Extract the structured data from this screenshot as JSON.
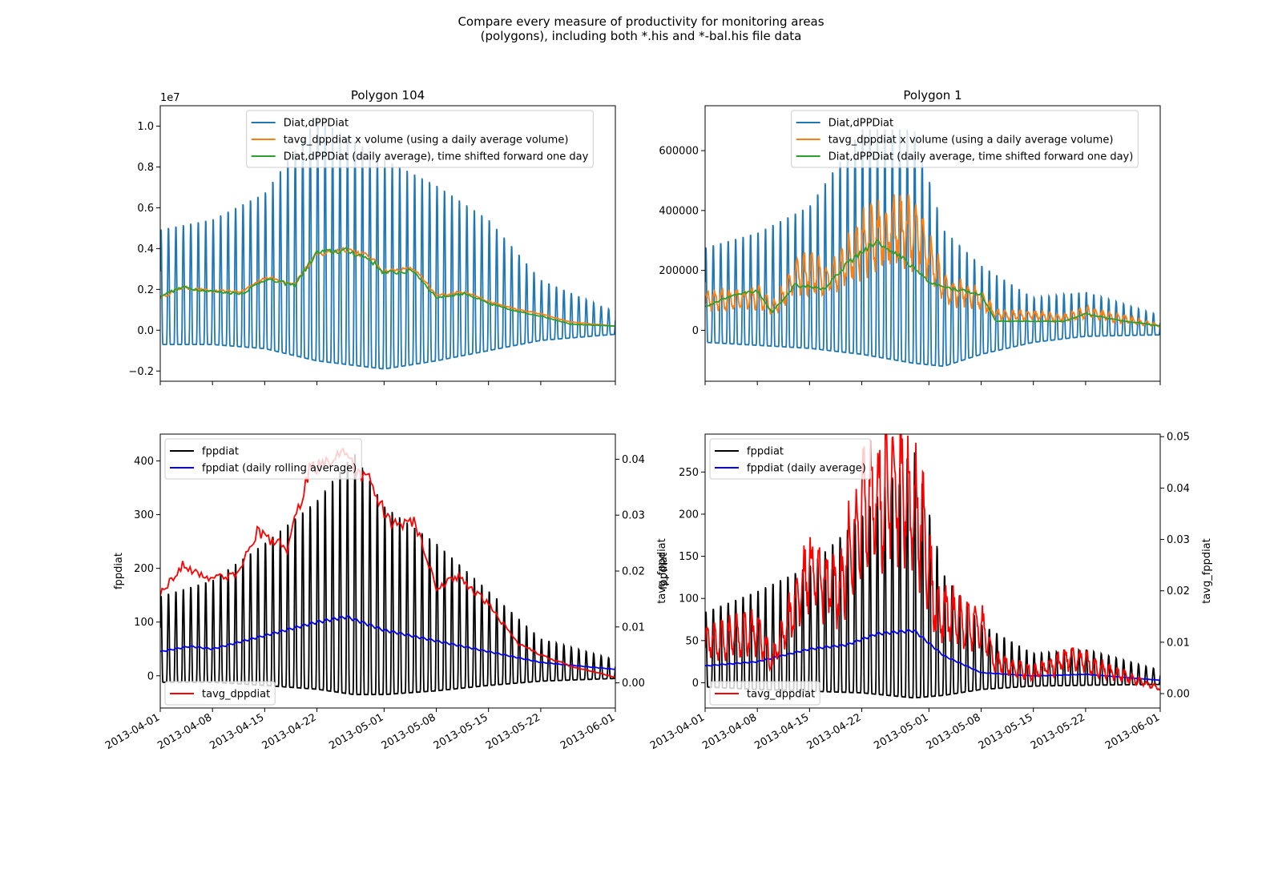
{
  "figure": {
    "title_line1": "Compare every measure of productivity for monitoring areas",
    "title_line2": "(polygons), including both *.his and *-bal.his file data"
  },
  "colors": {
    "c0": "#1f77b4",
    "c1": "#ff7f0e",
    "c2": "#2ca02c",
    "black": "#000000",
    "blue": "#0000ff",
    "red": "#ff0000"
  },
  "chart_data": [
    {
      "id": "top-left",
      "type": "line",
      "title": "Polygon 104",
      "xlim": [
        "2013-04-01",
        "2013-06-01"
      ],
      "ylim": [
        -0.25,
        1.1
      ],
      "y_offset_label": "1e7",
      "yticks": [
        -0.2,
        0.0,
        0.2,
        0.4,
        0.6,
        0.8,
        1.0
      ],
      "ytick_labels": [
        "−0.2",
        "0.0",
        "0.2",
        "0.4",
        "0.6",
        "0.8",
        "1.0"
      ],
      "legend": {
        "loc": "upper center"
      },
      "series": [
        {
          "name": "Diat,dPPDiat",
          "color": "#1f77b4",
          "kind": "diurnal",
          "envelope_x": [
            "2013-04-01",
            "2013-04-08",
            "2013-04-15",
            "2013-04-22",
            "2013-05-01",
            "2013-05-08",
            "2013-05-15",
            "2013-05-22",
            "2013-06-01"
          ],
          "peak": [
            0.5,
            0.55,
            0.68,
            1.05,
            0.85,
            0.72,
            0.55,
            0.25,
            0.09
          ],
          "trough": [
            -0.07,
            -0.07,
            -0.09,
            -0.15,
            -0.19,
            -0.15,
            -0.1,
            -0.05,
            -0.02
          ]
        },
        {
          "name": "tavg_dppdiat x volume (using a daily average volume)",
          "color": "#ff7f0e",
          "kind": "stepped",
          "x": [
            "2013-04-01",
            "2013-04-04",
            "2013-04-08",
            "2013-04-12",
            "2013-04-15",
            "2013-04-19",
            "2013-04-22",
            "2013-04-26",
            "2013-04-29",
            "2013-05-01",
            "2013-05-05",
            "2013-05-08",
            "2013-05-12",
            "2013-05-15",
            "2013-05-19",
            "2013-05-22",
            "2013-05-26",
            "2013-06-01"
          ],
          "y": [
            0.16,
            0.21,
            0.19,
            0.19,
            0.26,
            0.23,
            0.37,
            0.4,
            0.36,
            0.29,
            0.3,
            0.17,
            0.19,
            0.14,
            0.1,
            0.08,
            0.04,
            0.02
          ]
        },
        {
          "name": "Diat,dPPDiat (daily average), time shifted forward one day",
          "color": "#2ca02c",
          "kind": "stepped",
          "x": [
            "2013-04-01",
            "2013-04-04",
            "2013-04-08",
            "2013-04-12",
            "2013-04-15",
            "2013-04-19",
            "2013-04-22",
            "2013-04-26",
            "2013-04-29",
            "2013-05-01",
            "2013-05-05",
            "2013-05-08",
            "2013-05-12",
            "2013-05-15",
            "2013-05-19",
            "2013-05-22",
            "2013-05-26",
            "2013-06-01"
          ],
          "y": [
            0.17,
            0.21,
            0.19,
            0.18,
            0.25,
            0.22,
            0.38,
            0.39,
            0.35,
            0.28,
            0.29,
            0.16,
            0.18,
            0.13,
            0.09,
            0.07,
            0.03,
            0.02
          ]
        }
      ]
    },
    {
      "id": "top-right",
      "type": "line",
      "title": "Polygon 1",
      "xlim": [
        "2013-04-01",
        "2013-06-01"
      ],
      "ylim": [
        -170000,
        750000
      ],
      "yticks": [
        0,
        200000,
        400000,
        600000
      ],
      "ytick_labels": [
        "0",
        "200000",
        "400000",
        "600000"
      ],
      "legend": {
        "loc": "upper center"
      },
      "series": [
        {
          "name": "Diat,dPPDiat",
          "color": "#1f77b4",
          "kind": "diurnal",
          "envelope_x": [
            "2013-04-01",
            "2013-04-08",
            "2013-04-15",
            "2013-04-22",
            "2013-04-29",
            "2013-05-03",
            "2013-05-08",
            "2013-05-15",
            "2013-05-22",
            "2013-06-01"
          ],
          "peak": [
            280000,
            330000,
            420000,
            680000,
            680000,
            340000,
            220000,
            110000,
            130000,
            50000
          ],
          "trough": [
            -40000,
            -50000,
            -60000,
            -80000,
            -110000,
            -120000,
            -80000,
            -40000,
            -20000,
            -15000
          ]
        },
        {
          "name": "tavg_dppdiat x volume (using a daily average volume)",
          "color": "#ff7f0e",
          "kind": "noisy",
          "x": [
            "2013-04-01",
            "2013-04-08",
            "2013-04-10",
            "2013-04-14",
            "2013-04-18",
            "2013-04-22",
            "2013-04-27",
            "2013-04-30",
            "2013-05-03",
            "2013-05-08",
            "2013-05-10",
            "2013-05-15",
            "2013-05-19",
            "2013-05-22",
            "2013-06-01"
          ],
          "y": [
            100000,
            110000,
            70000,
            200000,
            170000,
            290000,
            340000,
            300000,
            140000,
            110000,
            50000,
            50000,
            40000,
            60000,
            15000
          ]
        },
        {
          "name": "Diat,dPPDiat (daily average, time shifted forward one day)",
          "color": "#2ca02c",
          "kind": "stepped",
          "x": [
            "2013-04-01",
            "2013-04-05",
            "2013-04-08",
            "2013-04-10",
            "2013-04-13",
            "2013-04-17",
            "2013-04-20",
            "2013-04-24",
            "2013-04-28",
            "2013-05-01",
            "2013-05-04",
            "2013-05-08",
            "2013-05-10",
            "2013-05-15",
            "2013-05-19",
            "2013-05-22",
            "2013-05-26",
            "2013-06-01"
          ],
          "y": [
            80000,
            120000,
            130000,
            60000,
            150000,
            140000,
            220000,
            300000,
            230000,
            160000,
            140000,
            120000,
            30000,
            30000,
            30000,
            55000,
            35000,
            15000
          ]
        }
      ]
    },
    {
      "id": "bottom-left",
      "type": "line",
      "xlim": [
        "2013-04-01",
        "2013-06-01"
      ],
      "ylim": [
        -60,
        450
      ],
      "ylabel": "fppdiat",
      "yticks": [
        0,
        100,
        200,
        300,
        400
      ],
      "ytick_labels": [
        "0",
        "100",
        "200",
        "300",
        "400"
      ],
      "y2lim": [
        -0.0045,
        0.0445
      ],
      "y2label": "tavg_fppdiat",
      "y2ticks": [
        0.0,
        0.01,
        0.02,
        0.03,
        0.04
      ],
      "y2tick_labels": [
        "0.00",
        "0.01",
        "0.02",
        "0.03",
        "0.04"
      ],
      "xtick_labels": [
        "2013-04-01",
        "2013-04-08",
        "2013-04-15",
        "2013-04-22",
        "2013-05-01",
        "2013-05-08",
        "2013-05-15",
        "2013-05-22",
        "2013-06-01"
      ],
      "legend": {
        "loc": "upper left"
      },
      "legend2": {
        "loc": "lower left"
      },
      "series": [
        {
          "name": "fppdiat",
          "color": "#000000",
          "kind": "diurnal",
          "axis": "left",
          "envelope_x": [
            "2013-04-01",
            "2013-04-08",
            "2013-04-15",
            "2013-04-22",
            "2013-04-27",
            "2013-05-01",
            "2013-05-08",
            "2013-05-15",
            "2013-05-22",
            "2013-06-01"
          ],
          "peak": [
            150,
            180,
            250,
            330,
            420,
            320,
            250,
            160,
            70,
            30
          ],
          "trough": [
            -12,
            -12,
            -18,
            -25,
            -35,
            -35,
            -28,
            -18,
            -10,
            -5
          ]
        },
        {
          "name": "fppdiat (daily rolling average)",
          "color": "#0000ff",
          "kind": "smooth",
          "axis": "left",
          "x": [
            "2013-04-01",
            "2013-04-05",
            "2013-04-08",
            "2013-04-15",
            "2013-04-22",
            "2013-04-26",
            "2013-05-01",
            "2013-05-08",
            "2013-05-15",
            "2013-05-22",
            "2013-06-01"
          ],
          "y": [
            45,
            55,
            50,
            75,
            100,
            110,
            85,
            65,
            45,
            25,
            12
          ]
        },
        {
          "name": "tavg_dppdiat",
          "color": "#ff0000",
          "kind": "stepped",
          "axis": "right",
          "x": [
            "2013-04-01",
            "2013-04-04",
            "2013-04-07",
            "2013-04-11",
            "2013-04-14",
            "2013-04-18",
            "2013-04-21",
            "2013-04-25",
            "2013-04-29",
            "2013-05-02",
            "2013-05-05",
            "2013-05-08",
            "2013-05-11",
            "2013-05-15",
            "2013-05-19",
            "2013-05-22",
            "2013-05-26",
            "2013-06-01"
          ],
          "y": [
            0.016,
            0.021,
            0.019,
            0.019,
            0.027,
            0.024,
            0.038,
            0.041,
            0.036,
            0.028,
            0.029,
            0.017,
            0.019,
            0.014,
            0.007,
            0.005,
            0.003,
            0.001
          ]
        }
      ]
    },
    {
      "id": "bottom-right",
      "type": "line",
      "xlim": [
        "2013-04-01",
        "2013-06-01"
      ],
      "ylim": [
        -30,
        295
      ],
      "ylabel": "fppdiat",
      "yticks": [
        0,
        50,
        100,
        150,
        200,
        250
      ],
      "ytick_labels": [
        "0",
        "50",
        "100",
        "150",
        "200",
        "250"
      ],
      "y2lim": [
        -0.0028,
        0.0505
      ],
      "y2label": "tavg_fppdiat",
      "y2ticks": [
        0.0,
        0.01,
        0.02,
        0.03,
        0.04,
        0.05
      ],
      "y2tick_labels": [
        "0.00",
        "0.01",
        "0.02",
        "0.03",
        "0.04",
        "0.05"
      ],
      "xtick_labels": [
        "2013-04-01",
        "2013-04-08",
        "2013-04-15",
        "2013-04-22",
        "2013-05-01",
        "2013-05-08",
        "2013-05-15",
        "2013-05-22",
        "2013-06-01"
      ],
      "legend": {
        "loc": "upper left"
      },
      "legend2": {
        "loc": "lower left"
      },
      "series": [
        {
          "name": "fppdiat",
          "color": "#000000",
          "kind": "diurnal",
          "axis": "left",
          "envelope_x": [
            "2013-04-01",
            "2013-04-08",
            "2013-04-15",
            "2013-04-22",
            "2013-04-29",
            "2013-05-03",
            "2013-05-08",
            "2013-05-15",
            "2013-05-22",
            "2013-06-01"
          ],
          "peak": [
            85,
            110,
            140,
            200,
            280,
            130,
            70,
            35,
            40,
            15
          ],
          "trough": [
            -5,
            -8,
            -10,
            -12,
            -18,
            -15,
            -8,
            -4,
            -3,
            -2
          ]
        },
        {
          "name": "fppdiat (daily average)",
          "color": "#0000ff",
          "kind": "smooth",
          "axis": "left",
          "x": [
            "2013-04-01",
            "2013-04-08",
            "2013-04-15",
            "2013-04-20",
            "2013-04-24",
            "2013-04-29",
            "2013-05-03",
            "2013-05-08",
            "2013-05-15",
            "2013-05-22",
            "2013-06-01"
          ],
          "y": [
            20,
            25,
            40,
            45,
            58,
            62,
            32,
            12,
            8,
            10,
            3
          ]
        },
        {
          "name": "tavg_dppdiat",
          "color": "#ff0000",
          "kind": "noisy",
          "axis": "right",
          "x": [
            "2013-04-01",
            "2013-04-08",
            "2013-04-10",
            "2013-04-15",
            "2013-04-19",
            "2013-04-22",
            "2013-04-27",
            "2013-04-30",
            "2013-05-02",
            "2013-05-08",
            "2013-05-10",
            "2013-05-15",
            "2013-05-20",
            "2013-05-24",
            "2013-06-01"
          ],
          "y": [
            0.01,
            0.012,
            0.006,
            0.024,
            0.02,
            0.036,
            0.04,
            0.033,
            0.016,
            0.013,
            0.006,
            0.004,
            0.007,
            0.005,
            0.001
          ]
        }
      ]
    }
  ]
}
